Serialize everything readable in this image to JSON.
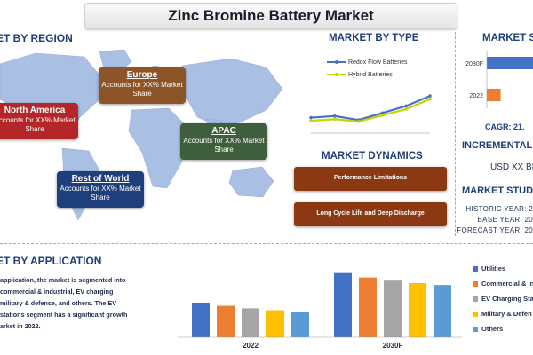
{
  "title": "Zinc Bromine Battery Market",
  "region": {
    "heading": "ET BY REGION",
    "boxes": [
      {
        "name": "North America",
        "desc": "Accounts for XX% Market Share",
        "color": "#b32729"
      },
      {
        "name": "Europe",
        "desc": "Accounts for XX% Market Share",
        "color": "#8d5527"
      },
      {
        "name": "APAC",
        "desc": "Accounts for XX% Market Share",
        "color": "#3f5e3c"
      },
      {
        "name": "Rest of World",
        "desc": "Accounts for XX% Market Share",
        "color": "#1f3e7c"
      }
    ]
  },
  "type": {
    "heading": "MARKET BY TYPE",
    "legend": [
      "Redox Flow Batteries",
      "Hybrid Batteries"
    ]
  },
  "dynamics": {
    "heading": "MARKET DYNAMICS",
    "items": [
      "Performance Limitations",
      "Long Cycle Life and Deep Discharge"
    ]
  },
  "size": {
    "heading": "MARKET S",
    "cagr": "CAGR: 21.",
    "incremental": "INCREMENTAL G",
    "usd": "USD XX BI"
  },
  "study": {
    "heading": "MARKET STUDY",
    "lines": [
      "HISTORIC YEAR: 2",
      "BASE YEAR: 20",
      "FORECAST YEAR: 20"
    ]
  },
  "application": {
    "heading": "ET BY APPLICATION",
    "text_lines": [
      "application, the market is segmented into",
      "commercial & industrial, EV charging",
      "military & defence, and others. The EV",
      "stations segment has a significant growth",
      "arket in 2022."
    ],
    "legend": [
      "Utilities",
      "Commercial & In",
      "EV Charging Stat",
      "Military & Defen",
      "Others"
    ]
  },
  "colors": {
    "navy": "#1f3f7a",
    "blue": "#4472c4",
    "orange": "#ed7d31",
    "gray": "#a5a5a5",
    "yellow": "#ffc000",
    "lightblue": "#5b9bd5",
    "yellowgreen": "#c4d600",
    "dynamics": "#8a3912"
  },
  "chart_data": [
    {
      "type": "line",
      "title": "MARKET BY TYPE",
      "x": [
        1,
        2,
        3,
        4,
        5,
        6
      ],
      "series": [
        {
          "name": "Redox Flow Batteries",
          "values": [
            2.0,
            2.2,
            1.7,
            2.6,
            3.5,
            4.8
          ],
          "color": "#4472c4"
        },
        {
          "name": "Hybrid Batteries",
          "values": [
            1.6,
            1.8,
            1.5,
            2.3,
            3.1,
            4.4
          ],
          "color": "#c4d600"
        }
      ],
      "ylim": [
        0,
        5.5
      ],
      "grid": false
    },
    {
      "type": "bar",
      "orientation": "horizontal",
      "title": "MARKET S",
      "categories": [
        "2030F",
        "2022"
      ],
      "values": [
        10,
        3
      ],
      "colors": [
        "#4472c4",
        "#ed7d31"
      ]
    },
    {
      "type": "bar",
      "title": "ET BY APPLICATION",
      "categories": [
        "2022",
        "2030F"
      ],
      "series": [
        {
          "name": "Utilities",
          "values": [
            5.5,
            10.2
          ],
          "color": "#4472c4"
        },
        {
          "name": "Commercial & In",
          "values": [
            5.0,
            9.5
          ],
          "color": "#ed7d31"
        },
        {
          "name": "EV Charging Stat",
          "values": [
            4.6,
            9.0
          ],
          "color": "#a5a5a5"
        },
        {
          "name": "Military & Defen",
          "values": [
            4.3,
            8.6
          ],
          "color": "#ffc000"
        },
        {
          "name": "Others",
          "values": [
            4.0,
            8.3
          ],
          "color": "#5b9bd5"
        }
      ],
      "ylim": [
        0,
        11
      ],
      "legend": "right"
    }
  ]
}
